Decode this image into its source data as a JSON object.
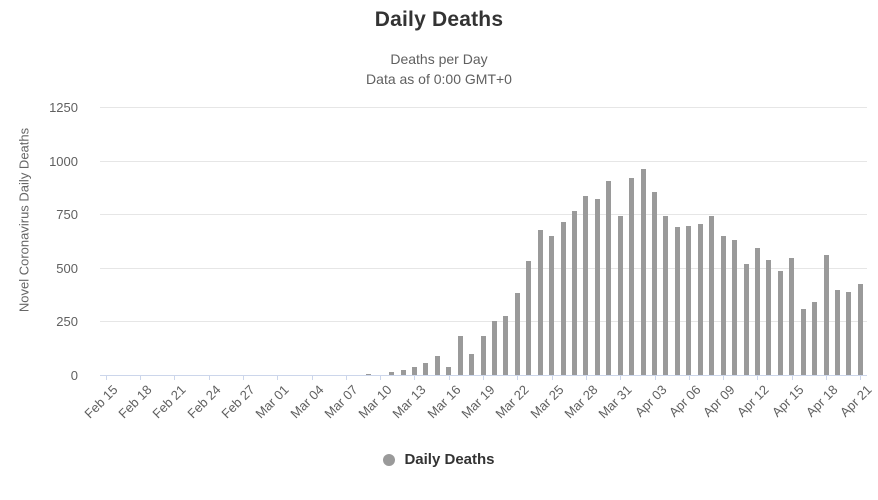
{
  "colors": {
    "background": "#ffffff",
    "bar": "#9a9a9a",
    "grid": "#e6e6e6",
    "axis_line": "#ccd6eb",
    "title": "#333333",
    "subtitle": "#606060",
    "tick_label": "#606060",
    "y_axis_title": "#666666",
    "legend_text": "#333333"
  },
  "chart_data": {
    "type": "bar",
    "title": "Daily Deaths",
    "subtitle_lines": [
      "Deaths per Day",
      "Data as of 0:00 GMT+0"
    ],
    "xlabel": "",
    "ylabel": "Novel Coronavirus Daily Deaths",
    "ylim": [
      0,
      1250
    ],
    "yticks": [
      0,
      250,
      500,
      750,
      1000,
      1250
    ],
    "grid": true,
    "legend_position": "bottom",
    "x_label_interval": 3,
    "series": [
      {
        "name": "Daily Deaths",
        "color": "#9a9a9a",
        "marker": "circle"
      }
    ],
    "categories": [
      "Feb 15",
      "Feb 16",
      "Feb 17",
      "Feb 18",
      "Feb 19",
      "Feb 20",
      "Feb 21",
      "Feb 22",
      "Feb 23",
      "Feb 24",
      "Feb 25",
      "Feb 26",
      "Feb 27",
      "Feb 28",
      "Feb 29",
      "Mar 01",
      "Mar 02",
      "Mar 03",
      "Mar 04",
      "Mar 05",
      "Mar 06",
      "Mar 07",
      "Mar 08",
      "Mar 09",
      "Mar 10",
      "Mar 11",
      "Mar 12",
      "Mar 13",
      "Mar 14",
      "Mar 15",
      "Mar 16",
      "Mar 17",
      "Mar 18",
      "Mar 19",
      "Mar 20",
      "Mar 21",
      "Mar 22",
      "Mar 23",
      "Mar 24",
      "Mar 25",
      "Mar 26",
      "Mar 27",
      "Mar 28",
      "Mar 29",
      "Mar 30",
      "Mar 31",
      "Apr 01",
      "Apr 02",
      "Apr 03",
      "Apr 04",
      "Apr 05",
      "Apr 06",
      "Apr 07",
      "Apr 08",
      "Apr 09",
      "Apr 10",
      "Apr 11",
      "Apr 12",
      "Apr 13",
      "Apr 14",
      "Apr 15",
      "Apr 16",
      "Apr 17",
      "Apr 18",
      "Apr 19",
      "Apr 20",
      "Apr 21"
    ],
    "values": [
      0,
      0,
      0,
      0,
      0,
      0,
      0,
      0,
      0,
      0,
      0,
      0,
      0,
      0,
      0,
      0,
      0,
      0,
      0,
      0,
      0,
      0,
      0,
      7,
      2,
      12,
      25,
      39,
      56,
      90,
      36,
      183,
      96,
      183,
      250,
      275,
      383,
      534,
      675,
      648,
      714,
      767,
      836,
      820,
      906,
      742,
      917,
      961,
      852,
      741,
      691,
      697,
      703,
      741,
      648,
      628,
      517,
      591,
      537,
      486,
      545,
      307,
      343,
      559,
      398,
      387,
      424
    ],
    "x_tick_labels": [
      "Feb 15",
      "Feb 18",
      "Feb 21",
      "Feb 24",
      "Feb 27",
      "Mar 01",
      "Mar 04",
      "Mar 07",
      "Mar 10",
      "Mar 13",
      "Mar 16",
      "Mar 19",
      "Mar 22",
      "Mar 25",
      "Mar 28",
      "Mar 31",
      "Apr 03",
      "Apr 06",
      "Apr 09",
      "Apr 12",
      "Apr 15",
      "Apr 18",
      "Apr 21"
    ]
  }
}
